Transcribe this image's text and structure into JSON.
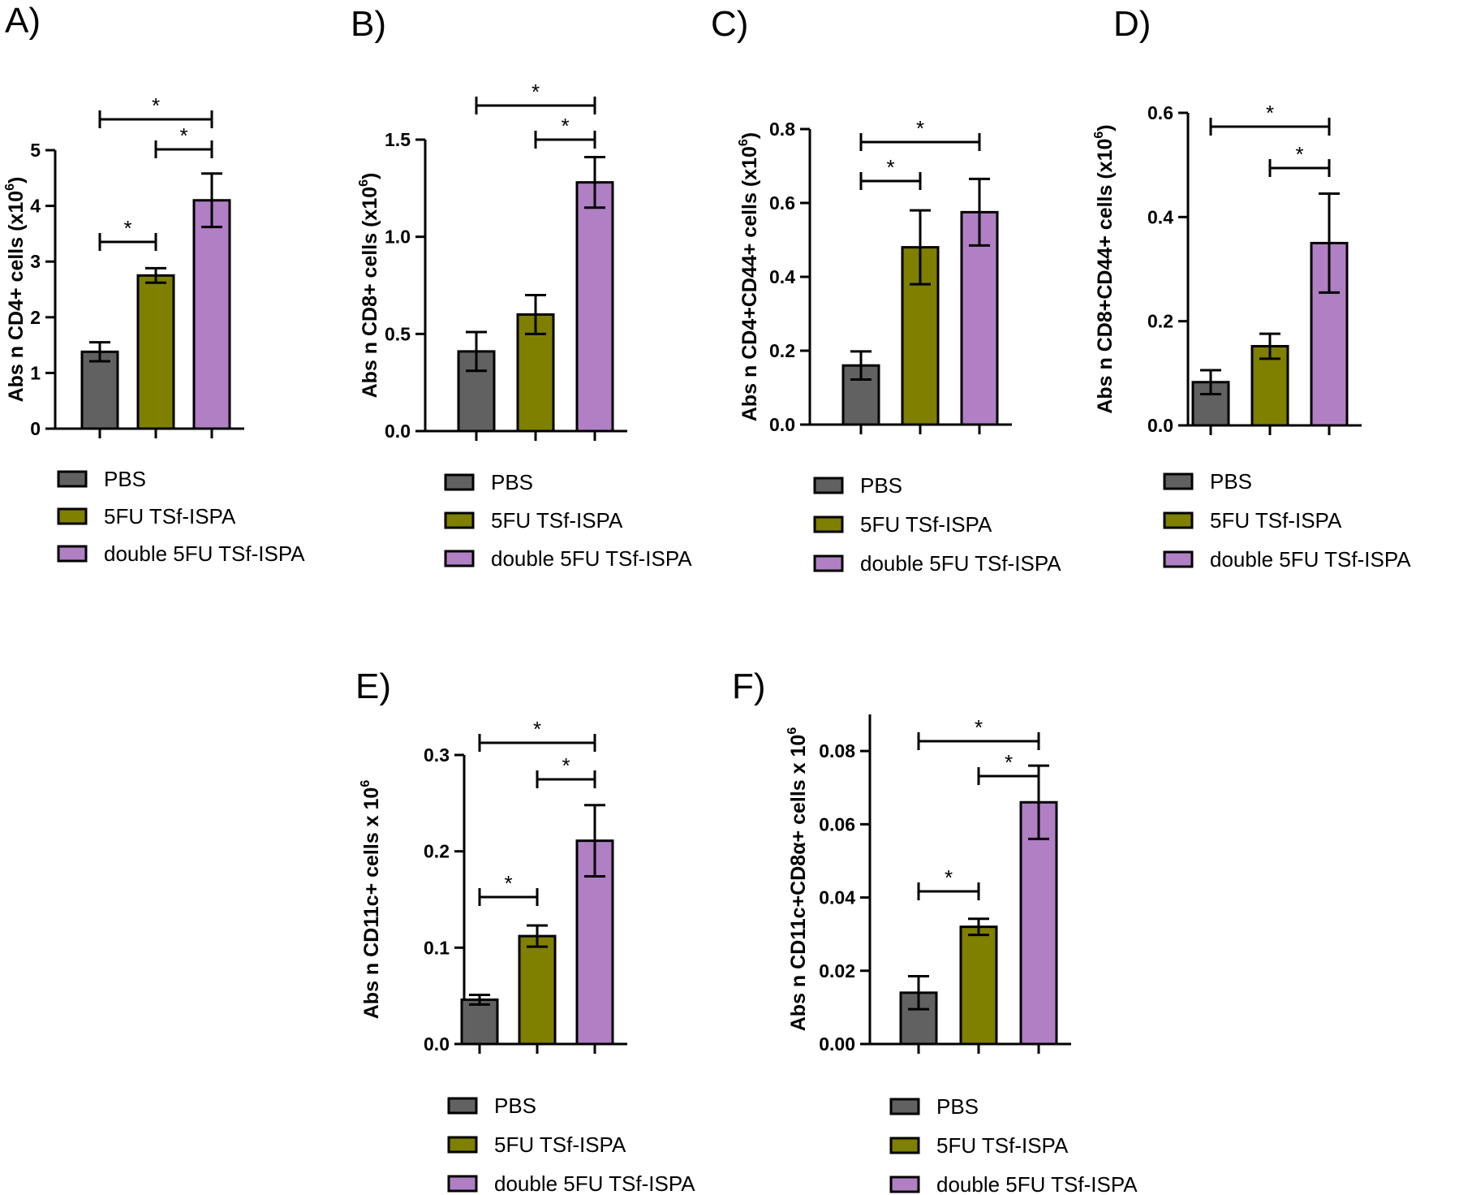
{
  "figure": {
    "type": "multi-panel bar chart",
    "panel_count": 6
  },
  "legend": [
    {
      "label": "PBS",
      "color": "#616161"
    },
    {
      "label": "5FU TSf-ISPA",
      "color": "#7f7f00"
    },
    {
      "label": "double 5FU TSf-ISPA",
      "color": "#b07fc4"
    }
  ],
  "significance_symbol": "*",
  "chart_data": [
    {
      "panel": "A)",
      "type": "bar",
      "title": "",
      "categories": [
        "PBS",
        "5FU TSf-ISPA",
        "double 5FU TSf-ISPA"
      ],
      "values": [
        1.38,
        2.75,
        4.1
      ],
      "errors": [
        0.17,
        0.13,
        0.48
      ],
      "ylabel_main": "Abs n CD4+ cells (x10",
      "ylabel_sup": "6",
      "ylabel_end": ")",
      "ylim": [
        0,
        5
      ],
      "yticks": [
        "0",
        "1",
        "2",
        "3",
        "4",
        "5"
      ],
      "tick_values": [
        0,
        1,
        2,
        3,
        4,
        5
      ],
      "significance": [
        {
          "from": 0,
          "to": 1,
          "label": "*",
          "level": 0
        },
        {
          "from": 1,
          "to": 2,
          "label": "*",
          "level": 1
        },
        {
          "from": 0,
          "to": 2,
          "label": "*",
          "level": 2
        }
      ]
    },
    {
      "panel": "B)",
      "type": "bar",
      "title": "",
      "categories": [
        "PBS",
        "5FU TSf-ISPA",
        "double 5FU TSf-ISPA"
      ],
      "values": [
        0.41,
        0.6,
        1.28
      ],
      "errors": [
        0.1,
        0.1,
        0.13
      ],
      "ylabel_main": "Abs n CD8+ cells (x10",
      "ylabel_sup": "6",
      "ylabel_end": ")",
      "ylim": [
        0,
        1.5
      ],
      "yticks": [
        "0.0",
        "0.5",
        "1.0",
        "1.5"
      ],
      "tick_values": [
        0,
        0.5,
        1.0,
        1.5
      ],
      "significance": [
        {
          "from": 1,
          "to": 2,
          "label": "*",
          "level": 0
        },
        {
          "from": 0,
          "to": 2,
          "label": "*",
          "level": 1
        }
      ]
    },
    {
      "panel": "C)",
      "type": "bar",
      "title": "",
      "categories": [
        "PBS",
        "5FU TSf-ISPA",
        "double 5FU TSf-ISPA"
      ],
      "values": [
        0.16,
        0.48,
        0.575
      ],
      "errors": [
        0.038,
        0.1,
        0.09
      ],
      "ylabel_main": "Abs n CD4+CD44+ cells (x10",
      "ylabel_sup": "6",
      "ylabel_end": ")",
      "ylim": [
        0,
        0.8
      ],
      "yticks": [
        "0.0",
        "0.2",
        "0.4",
        "0.6",
        "0.8"
      ],
      "tick_values": [
        0,
        0.2,
        0.4,
        0.6,
        0.8
      ],
      "significance": [
        {
          "from": 0,
          "to": 1,
          "label": "*",
          "level": 0
        },
        {
          "from": 0,
          "to": 2,
          "label": "*",
          "level": 1
        }
      ]
    },
    {
      "panel": "D)",
      "type": "bar",
      "title": "",
      "categories": [
        "PBS",
        "5FU TSf-ISPA",
        "double 5FU TSf-ISPA"
      ],
      "values": [
        0.083,
        0.152,
        0.35
      ],
      "errors": [
        0.023,
        0.024,
        0.095
      ],
      "ylabel_main": "Abs n CD8+CD44+ cells (x10",
      "ylabel_sup": "6",
      "ylabel_end": ")",
      "ylim": [
        0,
        0.6
      ],
      "yticks": [
        "0.0",
        "0.2",
        "0.4",
        "0.6"
      ],
      "tick_values": [
        0,
        0.2,
        0.4,
        0.6
      ],
      "significance": [
        {
          "from": 1,
          "to": 2,
          "label": "*",
          "level": 0
        },
        {
          "from": 0,
          "to": 2,
          "label": "*",
          "level": 1
        }
      ]
    },
    {
      "panel": "E)",
      "type": "bar",
      "title": "",
      "categories": [
        "PBS",
        "5FU TSf-ISPA",
        "double 5FU TSf-ISPA"
      ],
      "values": [
        0.046,
        0.112,
        0.211
      ],
      "errors": [
        0.005,
        0.011,
        0.037
      ],
      "ylabel_main": "Abs n CD11c+ cells x 10",
      "ylabel_sup": "6",
      "ylabel_end": "",
      "ylim": [
        0,
        0.3
      ],
      "yticks": [
        "0.0",
        "0.1",
        "0.2",
        "0.3"
      ],
      "tick_values": [
        0,
        0.1,
        0.2,
        0.3
      ],
      "significance": [
        {
          "from": 0,
          "to": 1,
          "label": "*",
          "level": 0
        },
        {
          "from": 1,
          "to": 2,
          "label": "*",
          "level": 1
        },
        {
          "from": 0,
          "to": 2,
          "label": "*",
          "level": 2
        }
      ]
    },
    {
      "panel": "F)",
      "type": "bar",
      "title": "",
      "categories": [
        "PBS",
        "5FU TSf-ISPA",
        "double 5FU TSf-ISPA"
      ],
      "values": [
        0.014,
        0.032,
        0.066
      ],
      "errors": [
        0.0045,
        0.0022,
        0.01
      ],
      "ylabel_main": "Abs n CD11c+CD8α+ cells x 10",
      "ylabel_sup": "6",
      "ylabel_end": "",
      "ylim": [
        0,
        0.09
      ],
      "yticks": [
        "0.00",
        "0.02",
        "0.04",
        "0.06",
        "0.08"
      ],
      "tick_values": [
        0,
        0.02,
        0.04,
        0.06,
        0.08
      ],
      "significance": [
        {
          "from": 0,
          "to": 1,
          "label": "*",
          "level": 0
        },
        {
          "from": 1,
          "to": 2,
          "label": "*",
          "level": 1
        },
        {
          "from": 0,
          "to": 2,
          "label": "*",
          "level": 2
        }
      ]
    }
  ]
}
